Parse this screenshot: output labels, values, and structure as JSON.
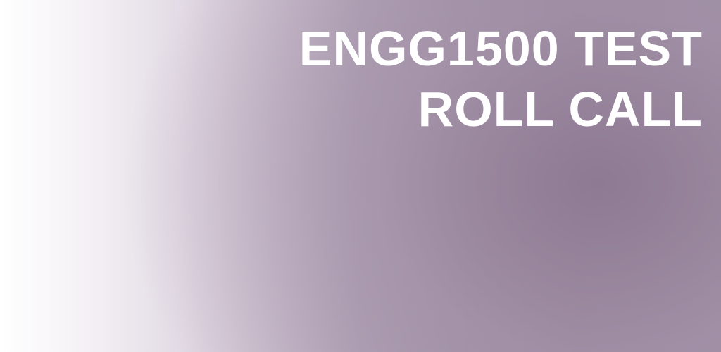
{
  "banner": {
    "title_line_1": "ENGG1500 TEST",
    "title_line_2": "ROLL CALL",
    "text_color": "#ffffff",
    "gradient_start_color": "#ffffff",
    "gradient_end_color": "#8f7c95"
  }
}
